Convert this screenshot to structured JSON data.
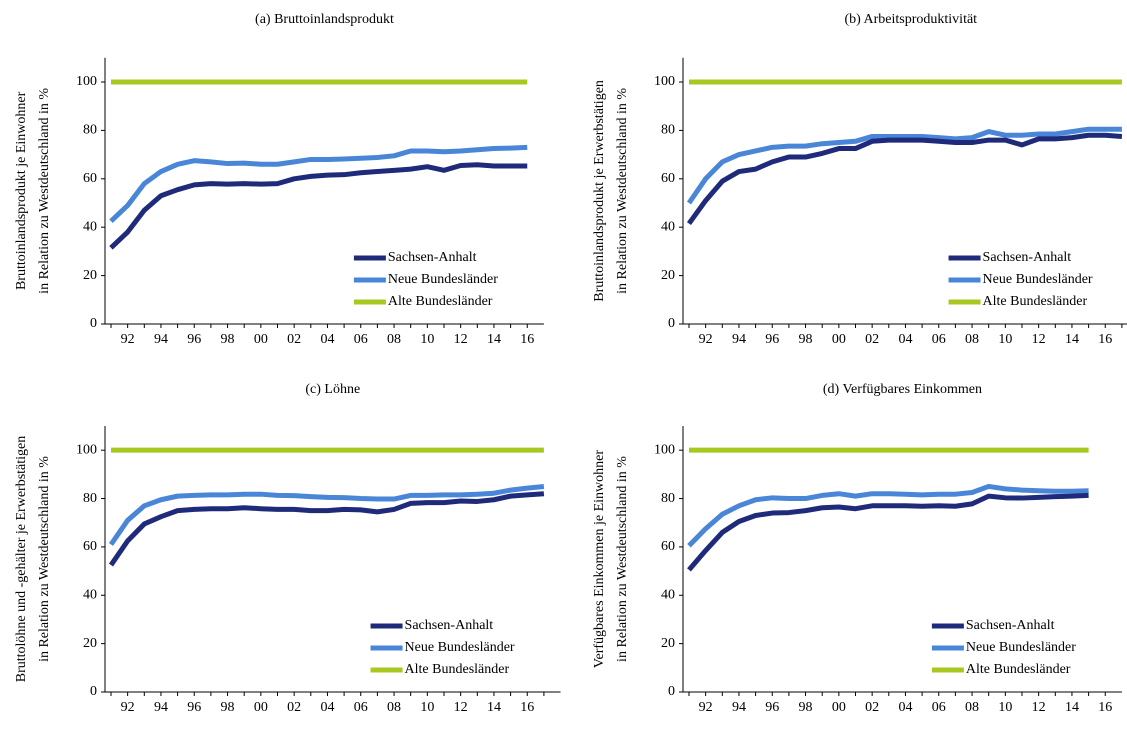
{
  "chart_data": [
    {
      "type": "line",
      "title": "(a) Bruttoinlandsprodukt",
      "ylabel": [
        "Bruttoinlandsprodukt je Einwohner",
        "in Relation zu Westdeutschland in %"
      ],
      "categories": [
        null,
        "92",
        null,
        "94",
        null,
        "96",
        null,
        "98",
        null,
        "00",
        null,
        "02",
        null,
        "04",
        null,
        "06",
        null,
        "08",
        null,
        "10",
        null,
        "12",
        null,
        "14",
        null,
        "16"
      ],
      "ylim": [
        0,
        110
      ],
      "yticks": [
        0,
        20,
        40,
        60,
        80,
        100
      ],
      "legend": "lower right",
      "series": [
        {
          "name": "Sachsen-Anhalt",
          "color": "#1f2a7a",
          "values": [
            31.5,
            38,
            47,
            53,
            55.5,
            57.5,
            58,
            57.8,
            58,
            57.8,
            58,
            60,
            61,
            61.5,
            61.7,
            62.5,
            63,
            63.5,
            64,
            65,
            63.5,
            65.5,
            65.8,
            65.3,
            65.3,
            65.3
          ]
        },
        {
          "name": "Neue Bundesländer",
          "color": "#4a86d8",
          "values": [
            42.5,
            49,
            58,
            63,
            66,
            67.5,
            67,
            66.3,
            66.5,
            66,
            66,
            67,
            68,
            68,
            68.2,
            68.5,
            68.8,
            69.5,
            71.5,
            71.5,
            71.2,
            71.5,
            72,
            72.5,
            72.7,
            73
          ]
        },
        {
          "name": "Alte Bundesländer",
          "color": "#a8c820",
          "values": [
            100,
            100,
            100,
            100,
            100,
            100,
            100,
            100,
            100,
            100,
            100,
            100,
            100,
            100,
            100,
            100,
            100,
            100,
            100,
            100,
            100,
            100,
            100,
            100,
            100,
            100
          ]
        }
      ]
    },
    {
      "type": "line",
      "title": "(b) Arbeitsproduktivität",
      "ylabel": [
        "Bruttoinlandsprodukt je Erwerbstätigen",
        "in Relation zu Westdeutschland in %"
      ],
      "categories": [
        null,
        "92",
        null,
        "94",
        null,
        "96",
        null,
        "98",
        null,
        "00",
        null,
        "02",
        null,
        "04",
        null,
        "06",
        null,
        "08",
        null,
        "10",
        null,
        "12",
        null,
        "14",
        null,
        "16",
        null
      ],
      "ylim": [
        0,
        110
      ],
      "yticks": [
        0,
        20,
        40,
        60,
        80,
        100
      ],
      "legend": "lower right",
      "series": [
        {
          "name": "Sachsen-Anhalt",
          "color": "#1f2a7a",
          "values": [
            41.5,
            51,
            59,
            63,
            64,
            67,
            69,
            69,
            70.5,
            72.5,
            72.5,
            75.5,
            76,
            76,
            76,
            75.5,
            75,
            75,
            76,
            76,
            74,
            76.5,
            76.5,
            77,
            78,
            78,
            77.5
          ]
        },
        {
          "name": "Neue Bundesländer",
          "color": "#4a86d8",
          "values": [
            50,
            60,
            67,
            70,
            71.5,
            73,
            73.5,
            73.5,
            74.5,
            75,
            75.5,
            77.5,
            77.5,
            77.5,
            77.5,
            77,
            76.5,
            77,
            79.5,
            78,
            78,
            78.5,
            78.5,
            79.5,
            80.5,
            80.5,
            80.5
          ]
        },
        {
          "name": "Alte Bundesländer",
          "color": "#a8c820",
          "values": [
            100,
            100,
            100,
            100,
            100,
            100,
            100,
            100,
            100,
            100,
            100,
            100,
            100,
            100,
            100,
            100,
            100,
            100,
            100,
            100,
            100,
            100,
            100,
            100,
            100,
            100,
            100
          ]
        }
      ]
    },
    {
      "type": "line",
      "title": "(c) Löhne",
      "ylabel": [
        "Bruttolöhne und -gehälter je Erwerbstätigen",
        "in Relation zu Westdeutschland in %"
      ],
      "categories": [
        null,
        "92",
        null,
        "94",
        null,
        "96",
        null,
        "98",
        null,
        "00",
        null,
        "02",
        null,
        "04",
        null,
        "06",
        null,
        "08",
        null,
        "10",
        null,
        "12",
        null,
        "14",
        null,
        "16",
        null
      ],
      "ylim": [
        0,
        110
      ],
      "yticks": [
        0,
        20,
        40,
        60,
        80,
        100
      ],
      "legend": "lower right",
      "series": [
        {
          "name": "Sachsen-Anhalt",
          "color": "#1f2a7a",
          "values": [
            52.5,
            62.5,
            69.5,
            72.5,
            75,
            75.5,
            75.8,
            75.8,
            76.2,
            75.8,
            75.5,
            75.5,
            75,
            75,
            75.5,
            75.3,
            74.5,
            75.5,
            78,
            78.3,
            78.3,
            79,
            78.8,
            79.5,
            81,
            81.5,
            82
          ]
        },
        {
          "name": "Neue Bundesländer",
          "color": "#4a86d8",
          "values": [
            61,
            71,
            77,
            79.5,
            81,
            81.3,
            81.5,
            81.5,
            81.8,
            81.8,
            81.3,
            81.2,
            80.8,
            80.5,
            80.4,
            80,
            79.8,
            79.8,
            81.3,
            81.3,
            81.5,
            81.5,
            81.8,
            82.2,
            83.5,
            84.3,
            85
          ]
        },
        {
          "name": "Alte Bundesländer",
          "color": "#a8c820",
          "values": [
            100,
            100,
            100,
            100,
            100,
            100,
            100,
            100,
            100,
            100,
            100,
            100,
            100,
            100,
            100,
            100,
            100,
            100,
            100,
            100,
            100,
            100,
            100,
            100,
            100,
            100,
            100
          ]
        }
      ]
    },
    {
      "type": "line",
      "title": "(d) Verfügbares Einkommen",
      "ylabel": [
        "Verfügbares Einkommen je Einwohner",
        "in Relation zu Westdeutschland in %"
      ],
      "categories": [
        null,
        "92",
        null,
        "94",
        null,
        "96",
        null,
        "98",
        null,
        "00",
        null,
        "02",
        null,
        "04",
        null,
        "06",
        null,
        "08",
        null,
        "10",
        null,
        "12",
        null,
        "14",
        null,
        "16"
      ],
      "ylim": [
        0,
        110
      ],
      "yticks": [
        0,
        20,
        40,
        60,
        80,
        100
      ],
      "legend": "lower right",
      "series": [
        {
          "name": "Sachsen-Anhalt",
          "color": "#1f2a7a",
          "values": [
            50.5,
            58.5,
            66,
            70.5,
            73,
            74,
            74.2,
            75,
            76.2,
            76.5,
            75.8,
            77,
            77,
            77,
            76.8,
            77,
            76.8,
            77.8,
            81,
            80.3,
            80.2,
            80.5,
            80.8,
            81,
            81.3,
            null
          ]
        },
        {
          "name": "Neue Bundesländer",
          "color": "#4a86d8",
          "values": [
            60.5,
            67.5,
            73.5,
            77,
            79.5,
            80.3,
            80,
            80,
            81.3,
            82,
            81,
            82,
            82,
            81.8,
            81.5,
            81.8,
            81.8,
            82.5,
            85,
            84,
            83.5,
            83.2,
            83,
            83,
            83.2,
            null
          ]
        },
        {
          "name": "Alte Bundesländer",
          "color": "#a8c820",
          "values": [
            100,
            100,
            100,
            100,
            100,
            100,
            100,
            100,
            100,
            100,
            100,
            100,
            100,
            100,
            100,
            100,
            100,
            100,
            100,
            100,
            100,
            100,
            100,
            100,
            100,
            null
          ]
        }
      ]
    }
  ]
}
